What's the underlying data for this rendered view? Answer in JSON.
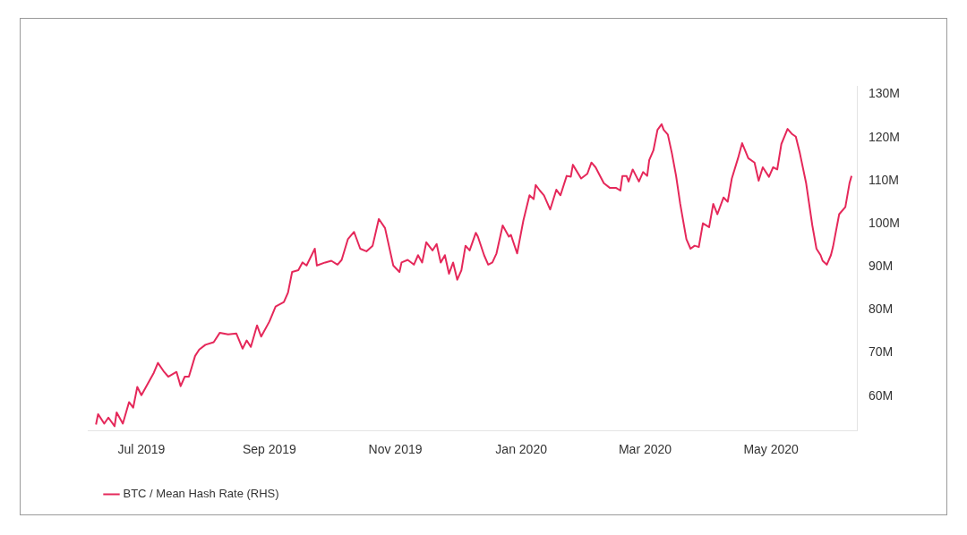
{
  "chart_data": {
    "type": "line",
    "x": [
      "2019-06-09",
      "2019-06-10",
      "2019-06-13",
      "2019-06-15",
      "2019-06-18",
      "2019-06-19",
      "2019-06-22",
      "2019-06-25",
      "2019-06-27",
      "2019-06-29",
      "2019-07-01",
      "2019-07-07",
      "2019-07-09",
      "2019-07-12",
      "2019-07-14",
      "2019-07-18",
      "2019-07-20",
      "2019-07-22",
      "2019-07-24",
      "2019-07-27",
      "2019-07-29",
      "2019-08-01",
      "2019-08-05",
      "2019-08-08",
      "2019-08-12",
      "2019-08-16",
      "2019-08-19",
      "2019-08-21",
      "2019-08-23",
      "2019-08-26",
      "2019-08-28",
      "2019-09-01",
      "2019-09-04",
      "2019-09-08",
      "2019-09-10",
      "2019-09-12",
      "2019-09-15",
      "2019-09-17",
      "2019-09-19",
      "2019-09-23",
      "2019-09-24",
      "2019-09-28",
      "2019-10-01",
      "2019-10-04",
      "2019-10-06",
      "2019-10-09",
      "2019-10-12",
      "2019-10-15",
      "2019-10-18",
      "2019-10-21",
      "2019-10-24",
      "2019-10-27",
      "2019-10-31",
      "2019-11-03",
      "2019-11-04",
      "2019-11-07",
      "2019-11-10",
      "2019-11-12",
      "2019-11-14",
      "2019-11-16",
      "2019-11-19",
      "2019-11-21",
      "2019-11-23",
      "2019-11-25",
      "2019-11-27",
      "2019-11-29",
      "2019-12-01",
      "2019-12-03",
      "2019-12-05",
      "2019-12-07",
      "2019-12-10",
      "2019-12-11",
      "2019-12-14",
      "2019-12-16",
      "2019-12-18",
      "2019-12-20",
      "2019-12-23",
      "2019-12-26",
      "2019-12-27",
      "2019-12-30",
      "2020-01-02",
      "2020-01-05",
      "2020-01-07",
      "2020-01-08",
      "2020-01-10",
      "2020-01-12",
      "2020-01-15",
      "2020-01-18",
      "2020-01-20",
      "2020-01-23",
      "2020-01-25",
      "2020-01-26",
      "2020-01-30",
      "2020-02-02",
      "2020-02-04",
      "2020-02-06",
      "2020-02-10",
      "2020-02-13",
      "2020-02-16",
      "2020-02-18",
      "2020-02-19",
      "2020-02-21",
      "2020-02-22",
      "2020-02-24",
      "2020-02-27",
      "2020-02-29",
      "2020-03-02",
      "2020-03-03",
      "2020-03-05",
      "2020-03-07",
      "2020-03-09",
      "2020-03-10",
      "2020-03-12",
      "2020-03-14",
      "2020-03-16",
      "2020-03-18",
      "2020-03-21",
      "2020-03-23",
      "2020-03-25",
      "2020-03-27",
      "2020-03-29",
      "2020-04-01",
      "2020-04-03",
      "2020-04-05",
      "2020-04-08",
      "2020-04-10",
      "2020-04-12",
      "2020-04-15",
      "2020-04-17",
      "2020-04-20",
      "2020-04-23",
      "2020-04-25",
      "2020-04-27",
      "2020-04-30",
      "2020-05-02",
      "2020-05-04",
      "2020-05-06",
      "2020-05-09",
      "2020-05-11",
      "2020-05-13",
      "2020-05-15",
      "2020-05-18",
      "2020-05-21",
      "2020-05-23",
      "2020-05-25",
      "2020-05-26",
      "2020-05-28",
      "2020-05-30",
      "2020-05-31",
      "2020-06-03",
      "2020-06-06",
      "2020-06-08",
      "2020-06-09"
    ],
    "series": [
      {
        "name": "BTC / Mean Hash Rate (RHS)",
        "color": "#e5285a",
        "values": [
          53.4,
          55.8,
          53.6,
          55,
          53,
          56.2,
          53.6,
          58.6,
          57.3,
          62.1,
          60.2,
          65.4,
          67.7,
          65.6,
          64.5,
          65.6,
          62.3,
          64.5,
          64.5,
          69.3,
          70.8,
          71.9,
          72.5,
          74.7,
          74.3,
          74.5,
          71,
          72.9,
          71.4,
          76.4,
          73.8,
          77.3,
          80.8,
          81.8,
          84,
          88.8,
          89.2,
          91,
          90.3,
          94.2,
          90.3,
          91,
          91.4,
          90.5,
          91.6,
          96.4,
          98.1,
          94.2,
          93.6,
          94.9,
          101.1,
          99,
          90.3,
          88.8,
          91,
          91.6,
          90.5,
          92.7,
          91,
          95.7,
          93.8,
          95.3,
          91,
          92.7,
          88.4,
          91,
          87,
          89.2,
          94.9,
          93.8,
          97.9,
          97,
          92.7,
          90.5,
          91,
          93.1,
          99.6,
          97,
          97.4,
          93.1,
          100.7,
          106.6,
          105.7,
          109,
          107.7,
          106.6,
          103.3,
          107.9,
          106.6,
          111.1,
          110.9,
          113.7,
          110.5,
          111.6,
          114.2,
          113.1,
          109.4,
          108.3,
          108.3,
          107.7,
          111.1,
          111.1,
          109.8,
          112.6,
          109.8,
          112,
          111.1,
          114.8,
          117,
          121.8,
          123.1,
          121.8,
          120.7,
          116.3,
          111.1,
          104.6,
          96.4,
          94.2,
          94.9,
          94.6,
          100.1,
          99.2,
          104.6,
          102.2,
          106.1,
          105.1,
          110.5,
          115.2,
          118.7,
          115.2,
          114.2,
          110,
          113.1,
          110.9,
          113.1,
          112.6,
          118.5,
          122,
          120.9,
          120.2,
          116.3,
          109.4,
          99.6,
          94.2,
          92.7,
          91.4,
          90.5,
          92.7,
          94.6,
          102.2,
          103.9,
          109.4,
          111.1
        ]
      }
    ],
    "xlim": [
      "2019-06-05",
      "2020-06-12"
    ],
    "xticks": [
      {
        "value": "2019-07-01",
        "label": "Jul 2019"
      },
      {
        "value": "2019-09-01",
        "label": "Sep 2019"
      },
      {
        "value": "2019-11-01",
        "label": "Nov 2019"
      },
      {
        "value": "2020-01-01",
        "label": "Jan 2020"
      },
      {
        "value": "2020-03-01",
        "label": "Mar 2020"
      },
      {
        "value": "2020-05-01",
        "label": "May 2020"
      }
    ],
    "ylim": [
      52,
      132
    ],
    "yticks": [
      {
        "value": 60,
        "label": "60M"
      },
      {
        "value": 70,
        "label": "70M"
      },
      {
        "value": 80,
        "label": "80M"
      },
      {
        "value": 90,
        "label": "90M"
      },
      {
        "value": 100,
        "label": "100M"
      },
      {
        "value": 110,
        "label": "110M"
      },
      {
        "value": 120,
        "label": "120M"
      },
      {
        "value": 130,
        "label": "130M"
      }
    ],
    "grid": false,
    "legend": "bottom left",
    "marker": "none",
    "line_style": "solid"
  }
}
